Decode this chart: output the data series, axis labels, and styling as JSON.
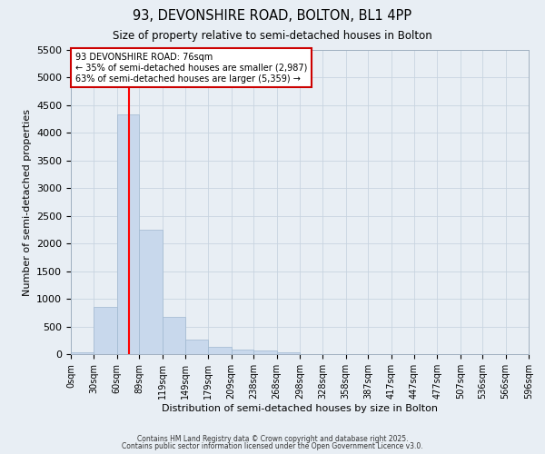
{
  "title": "93, DEVONSHIRE ROAD, BOLTON, BL1 4PP",
  "subtitle": "Size of property relative to semi-detached houses in Bolton",
  "xlabel": "Distribution of semi-detached houses by size in Bolton",
  "ylabel": "Number of semi-detached properties",
  "bin_labels": [
    "0sqm",
    "30sqm",
    "60sqm",
    "89sqm",
    "119sqm",
    "149sqm",
    "179sqm",
    "209sqm",
    "238sqm",
    "268sqm",
    "298sqm",
    "328sqm",
    "358sqm",
    "387sqm",
    "417sqm",
    "447sqm",
    "477sqm",
    "507sqm",
    "536sqm",
    "566sqm",
    "596sqm"
  ],
  "bar_heights": [
    30,
    850,
    4330,
    2250,
    680,
    270,
    130,
    80,
    60,
    30,
    0,
    0,
    0,
    0,
    0,
    0,
    0,
    0,
    0,
    0
  ],
  "bar_color": "#c8d8ec",
  "bar_edge_color": "#a0b8d0",
  "red_line_x": 76,
  "bin_edges": [
    0,
    30,
    60,
    89,
    119,
    149,
    179,
    209,
    238,
    268,
    298,
    328,
    358,
    387,
    417,
    447,
    477,
    507,
    536,
    566,
    596
  ],
  "ylim": [
    0,
    5500
  ],
  "yticks": [
    0,
    500,
    1000,
    1500,
    2000,
    2500,
    3000,
    3500,
    4000,
    4500,
    5000,
    5500
  ],
  "annotation_title": "93 DEVONSHIRE ROAD: 76sqm",
  "annotation_line1": "← 35% of semi-detached houses are smaller (2,987)",
  "annotation_line2": "63% of semi-detached houses are larger (5,359) →",
  "annotation_box_color": "#ffffff",
  "annotation_box_edge": "#cc0000",
  "grid_color": "#c8d4e0",
  "background_color": "#e8eef4",
  "footer1": "Contains HM Land Registry data © Crown copyright and database right 2025.",
  "footer2": "Contains public sector information licensed under the Open Government Licence v3.0."
}
